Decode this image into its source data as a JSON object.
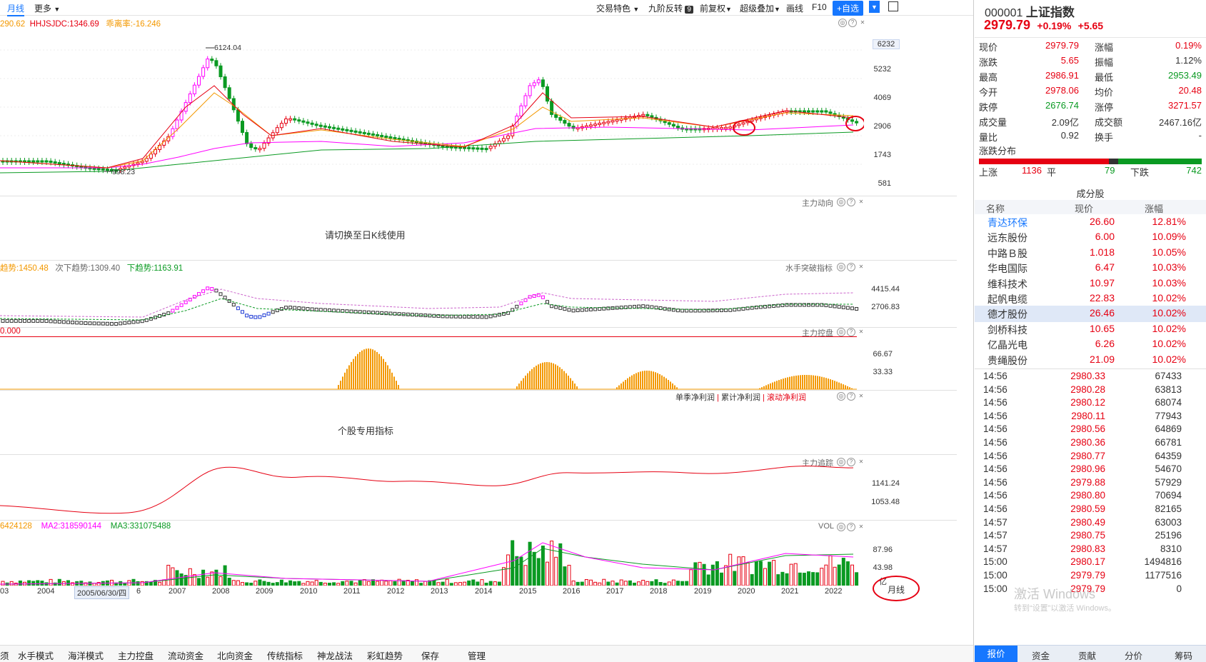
{
  "toolbar": {
    "period": "月线",
    "more": "更多",
    "trade_features": "交易特色",
    "nine_reversal": "九阶反转",
    "nine_badge": "9",
    "pre_adjust": "前复权",
    "super_overlay": "超级叠加",
    "draw": "画线",
    "f10": "F10",
    "add_watch": "+自选"
  },
  "main_chart": {
    "hdr_a": "290.62",
    "hdr_b": "HHJSJDC:1346.69",
    "hdr_c": "乖离率:-16.246",
    "price_tag": "6232",
    "axis": [
      "5232",
      "4069",
      "2906",
      "1743",
      "581"
    ],
    "high_label": "6124.04",
    "low_label": "998.23"
  },
  "panel2": {
    "name": "主力动向",
    "message": "请切换至日K线使用"
  },
  "panel3": {
    "name": "水手突破指标",
    "hdr_a": "趋势:1450.48",
    "hdr_b": "次下趋势:1309.40",
    "hdr_c": "下趋势:1163.91",
    "axis": [
      "4415.44",
      "2706.83"
    ]
  },
  "panel4": {
    "name": "主力控盘",
    "hdr_a": "0.000",
    "axis": [
      "66.67",
      "33.33"
    ]
  },
  "panel5": {
    "legend": [
      "单季净利润",
      "累计净利润",
      "滚动净利润"
    ],
    "message": "个股专用指标"
  },
  "panel6": {
    "name": "主力追踪",
    "axis": [
      "1141.24",
      "1053.48"
    ]
  },
  "panel7": {
    "name": "VOL",
    "hdr_a": "6424128",
    "hdr_b": "MA2:318590144",
    "hdr_c": "MA3:331075488",
    "axis": [
      "87.96",
      "43.98"
    ],
    "unit": "亿",
    "period_btn": "月线"
  },
  "x_axis": {
    "labels": [
      "03",
      "2004",
      "6",
      "2007",
      "2008",
      "2009",
      "2010",
      "2011",
      "2012",
      "2013",
      "2014",
      "2015",
      "2016",
      "2017",
      "2018",
      "2019",
      "2020",
      "2021",
      "2022"
    ],
    "cursor_date": "2005/06/30/四"
  },
  "bottom_tabs": [
    "须",
    "水手模式",
    "海洋模式",
    "主力控盘",
    "流动资金",
    "北向资金",
    "传统指标",
    "神龙战法",
    "彩虹趋势",
    "保存",
    "管理"
  ],
  "quote": {
    "code": "000001",
    "name": "上证指数",
    "price": "2979.79",
    "change_pct": "+0.19%",
    "change": "+5.65",
    "rows": [
      {
        "l1": "现价",
        "v1": "2979.79",
        "c1": "r",
        "l2": "涨幅",
        "v2": "0.19%",
        "c2": "r"
      },
      {
        "l1": "涨跌",
        "v1": "5.65",
        "c1": "r",
        "l2": "振幅",
        "v2": "1.12%",
        "c2": "k"
      },
      {
        "l1": "最高",
        "v1": "2986.91",
        "c1": "r",
        "l2": "最低",
        "v2": "2953.49",
        "c2": "g"
      },
      {
        "l1": "今开",
        "v1": "2978.06",
        "c1": "r",
        "l2": "均价",
        "v2": "20.48",
        "c2": "r"
      },
      {
        "l1": "跌停",
        "v1": "2676.74",
        "c1": "g",
        "l2": "涨停",
        "v2": "3271.57",
        "c2": "r"
      },
      {
        "l1": "成交量",
        "v1": "2.09亿",
        "c1": "k",
        "l2": "成交额",
        "v2": "2467.16亿",
        "c2": "k"
      },
      {
        "l1": "量比",
        "v1": "0.92",
        "c1": "k",
        "l2": "换手",
        "v2": "-",
        "c2": "k"
      }
    ]
  },
  "distribution": {
    "title": "涨跌分布",
    "up_label": "上涨",
    "up": "1136",
    "flat_label": "平",
    "flat": "79",
    "down_label": "下跌",
    "down": "742"
  },
  "components": {
    "title": "成分股",
    "headers": [
      "名称",
      "现价",
      "涨幅"
    ],
    "rows": [
      {
        "name": "青达环保",
        "price": "26.60",
        "pct": "12.81%"
      },
      {
        "name": "远东股份",
        "price": "6.00",
        "pct": "10.09%"
      },
      {
        "name": "中路Ｂ股",
        "price": "1.018",
        "pct": "10.05%"
      },
      {
        "name": "华电国际",
        "price": "6.47",
        "pct": "10.03%"
      },
      {
        "name": "维科技术",
        "price": "10.97",
        "pct": "10.03%"
      },
      {
        "name": "起帆电缆",
        "price": "22.83",
        "pct": "10.02%"
      },
      {
        "name": "德才股份",
        "price": "26.46",
        "pct": "10.02%"
      },
      {
        "name": "剑桥科技",
        "price": "10.65",
        "pct": "10.02%"
      },
      {
        "name": "亿晶光电",
        "price": "6.26",
        "pct": "10.02%"
      },
      {
        "name": "贵绳股份",
        "price": "21.09",
        "pct": "10.02%"
      }
    ]
  },
  "ticks": [
    {
      "t": "14:56",
      "p": "2980.33",
      "v": "67433"
    },
    {
      "t": "14:56",
      "p": "2980.28",
      "v": "63813"
    },
    {
      "t": "14:56",
      "p": "2980.12",
      "v": "68074"
    },
    {
      "t": "14:56",
      "p": "2980.11",
      "v": "77943"
    },
    {
      "t": "14:56",
      "p": "2980.56",
      "v": "64869"
    },
    {
      "t": "14:56",
      "p": "2980.36",
      "v": "66781"
    },
    {
      "t": "14:56",
      "p": "2980.77",
      "v": "64359"
    },
    {
      "t": "14:56",
      "p": "2980.96",
      "v": "54670"
    },
    {
      "t": "14:56",
      "p": "2979.88",
      "v": "57929"
    },
    {
      "t": "14:56",
      "p": "2980.80",
      "v": "70694"
    },
    {
      "t": "14:56",
      "p": "2980.59",
      "v": "82165"
    },
    {
      "t": "14:57",
      "p": "2980.49",
      "v": "63003"
    },
    {
      "t": "14:57",
      "p": "2980.75",
      "v": "25196"
    },
    {
      "t": "14:57",
      "p": "2980.83",
      "v": "8310"
    },
    {
      "t": "15:00",
      "p": "2980.17",
      "v": "1494816"
    },
    {
      "t": "15:00",
      "p": "2979.79",
      "v": "1177516"
    },
    {
      "t": "15:00",
      "p": "2979.79",
      "v": "0"
    }
  ],
  "right_tabs": [
    "报价",
    "资金",
    "贡献",
    "分价",
    "筹码"
  ],
  "watermark": "激活 Windows",
  "watermark_sub": "转到“设置”以激活 Windows。",
  "colors": {
    "up": "#e60012",
    "down": "#0a9a22",
    "magenta": "#ff00ff",
    "orange": "#f39800",
    "blue_accent": "#1677ff"
  }
}
